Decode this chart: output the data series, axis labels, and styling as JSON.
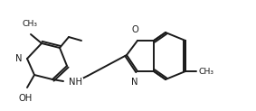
{
  "bg_color": "#ffffff",
  "line_color": "#1a1a1a",
  "text_color": "#1a1a1a",
  "line_width": 1.4,
  "font_size": 7.2,
  "figsize": [
    2.83,
    1.23
  ],
  "dpi": 100,
  "xlim": [
    0,
    283
  ],
  "ylim": [
    0,
    123
  ]
}
